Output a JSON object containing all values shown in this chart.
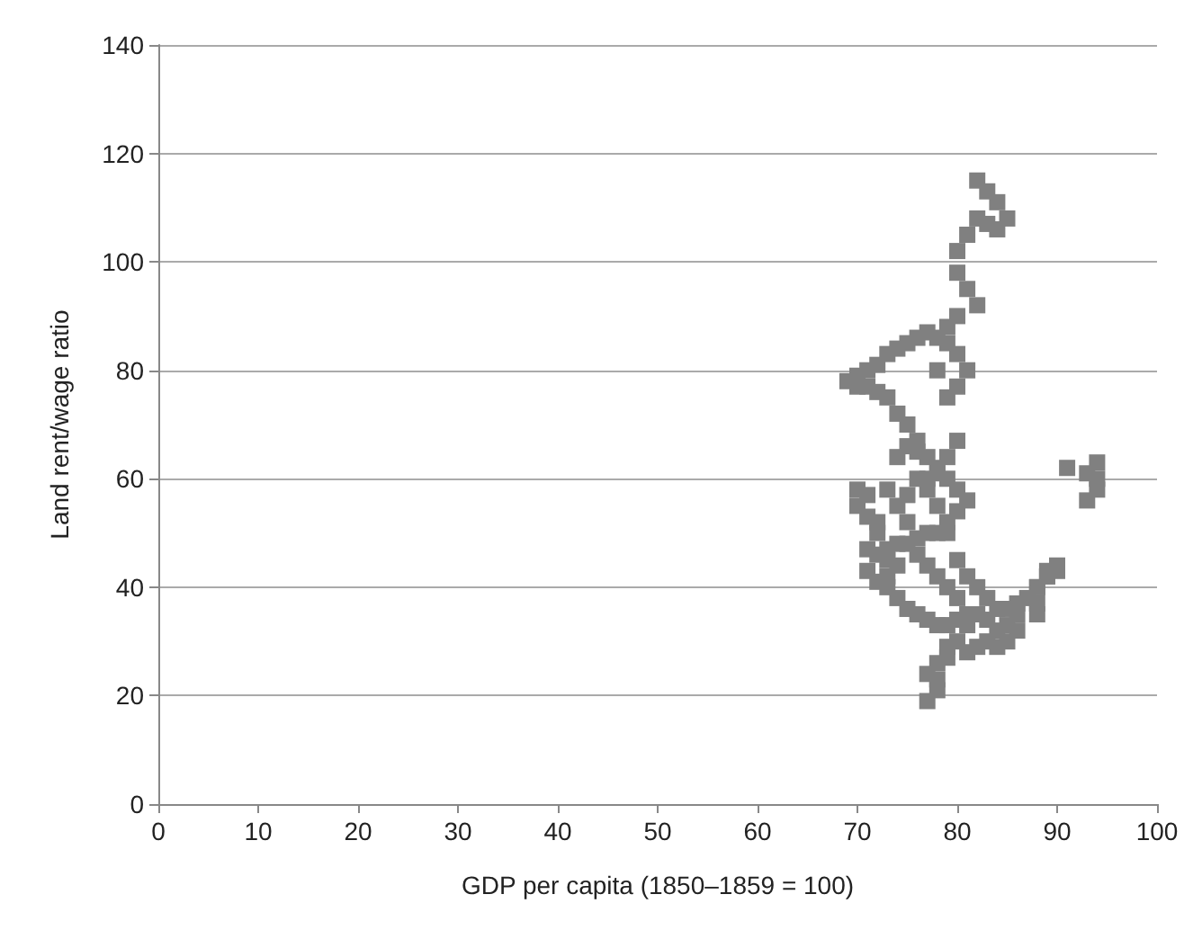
{
  "chart_data": {
    "type": "scatter",
    "xlabel": "GDP per capita (1850–1859 = 100)",
    "ylabel": "Land rent/wage ratio",
    "xlim": [
      0,
      100
    ],
    "ylim": [
      0,
      140
    ],
    "xticks": [
      0,
      10,
      20,
      30,
      40,
      50,
      60,
      70,
      80,
      90,
      100
    ],
    "yticks": [
      0,
      20,
      40,
      60,
      80,
      100,
      120,
      140
    ],
    "grid": "y",
    "marker": "square",
    "series": [
      {
        "color": "#808080",
        "x": [
          82,
          83,
          84,
          85,
          84,
          83,
          82,
          81,
          80,
          80,
          81,
          82,
          80,
          79,
          79,
          80,
          81,
          80,
          79,
          78,
          78,
          77,
          76,
          75,
          74,
          73,
          72,
          71,
          70,
          69,
          70,
          71,
          72,
          73,
          74,
          75,
          76,
          77,
          78,
          79,
          80,
          81,
          80,
          79,
          78,
          77,
          76,
          75,
          74,
          73,
          72,
          71,
          70,
          70,
          71,
          71,
          72,
          73,
          73,
          74,
          75,
          76,
          77,
          78,
          79,
          80,
          81,
          80,
          79,
          78,
          77,
          76,
          75,
          74,
          73,
          72,
          71,
          72,
          73,
          74,
          75,
          76,
          77,
          78,
          79,
          80,
          81,
          82,
          83,
          84,
          85,
          86,
          87,
          88,
          89,
          90,
          89,
          88,
          88,
          86,
          85,
          84,
          83,
          82,
          81,
          80,
          79,
          78,
          78,
          78,
          77,
          77,
          79,
          81,
          82,
          83,
          84,
          85,
          86,
          88,
          89,
          90,
          91,
          93,
          94,
          94,
          94,
          93,
          80,
          79,
          78,
          77,
          76,
          75,
          74
        ],
        "values": [
          115,
          113,
          111,
          108,
          106,
          107,
          108,
          105,
          102,
          98,
          95,
          92,
          90,
          88,
          85,
          83,
          80,
          77,
          75,
          80,
          86,
          87,
          86,
          85,
          84,
          83,
          81,
          80,
          79,
          78,
          77,
          77,
          76,
          75,
          72,
          70,
          67,
          64,
          62,
          60,
          58,
          56,
          54,
          52,
          50,
          50,
          49,
          48,
          48,
          47,
          46,
          47,
          55,
          58,
          57,
          53,
          50,
          45,
          40,
          38,
          36,
          35,
          34,
          33,
          33,
          34,
          35,
          38,
          40,
          42,
          44,
          46,
          52,
          44,
          42,
          41,
          43,
          52,
          58,
          64,
          66,
          65,
          60,
          55,
          50,
          45,
          42,
          40,
          38,
          36,
          36,
          37,
          38,
          40,
          42,
          44,
          42,
          40,
          35,
          32,
          33,
          32,
          30,
          29,
          28,
          30,
          29,
          26,
          23,
          21,
          19,
          24,
          27,
          33,
          35,
          34,
          29,
          30,
          35,
          37,
          43,
          43,
          62,
          61,
          60,
          63,
          58,
          56,
          67,
          64,
          61,
          58,
          60,
          57,
          55
        ]
      }
    ]
  }
}
